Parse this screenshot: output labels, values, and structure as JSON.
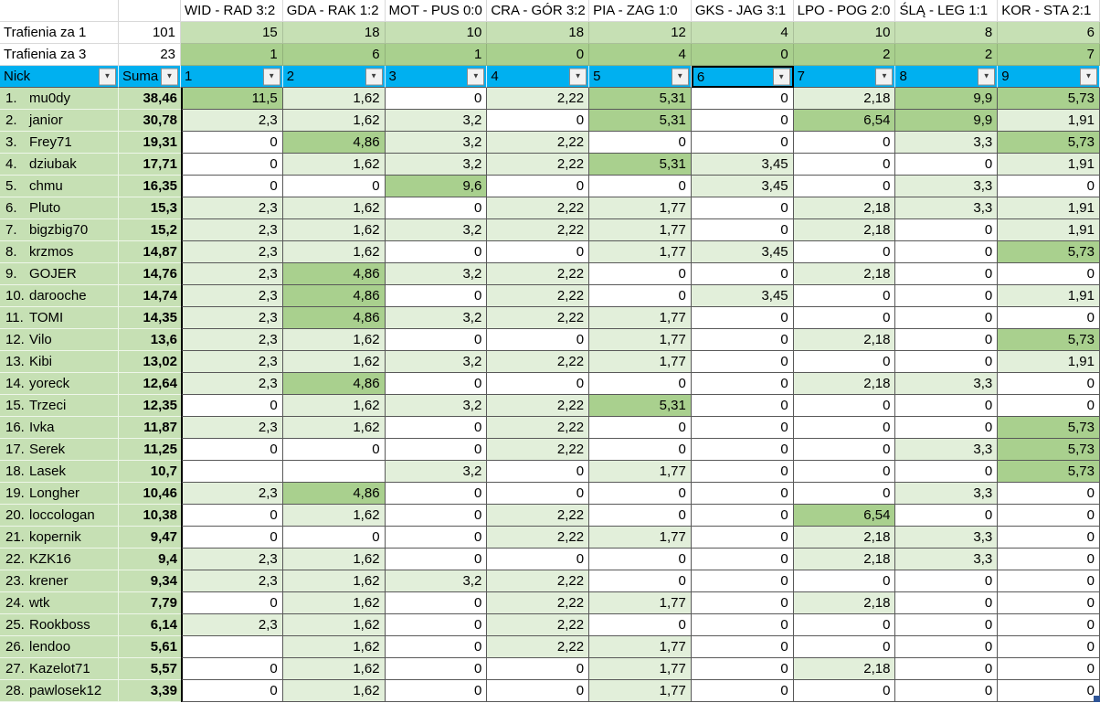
{
  "colors": {
    "filter_blue": "#00b0f0",
    "label_green": "#c6e0b4",
    "za1_green": "#c6e0b4",
    "za3_green": "#a9d08e",
    "hit1_green": "#e2efda",
    "hit3_green": "#a9d08e",
    "handle_blue": "#2f5597"
  },
  "matches": [
    "WID - RAD 3:2",
    "GDA - RAK 1:2",
    "MOT - PUS 0:0",
    "CRA - GÓR 3:2",
    "PIA - ZAG 1:0",
    "GKS - JAG 3:1",
    "LPO - POG 2:0",
    "ŚLĄ - LEG 1:1",
    "KOR - STA 2:1"
  ],
  "za1": {
    "label": "Trafienia za 1",
    "total": "101",
    "values": [
      "15",
      "18",
      "10",
      "18",
      "12",
      "4",
      "10",
      "8",
      "6"
    ]
  },
  "za3": {
    "label": "Trafienia za 3",
    "total": "23",
    "values": [
      "1",
      "6",
      "1",
      "0",
      "4",
      "0",
      "2",
      "2",
      "7"
    ]
  },
  "filter": {
    "nick_label": "Nick",
    "suma_label": "Suma",
    "column_labels": [
      "1",
      "2",
      "3",
      "4",
      "5",
      "6",
      "7",
      "8",
      "9"
    ],
    "selected_column": "6",
    "dropdown_icon": "▼"
  },
  "players": [
    {
      "rank": "1.",
      "nick": "mu0dy",
      "suma": "38,46",
      "scores": [
        "11,5",
        "1,62",
        "0",
        "2,22",
        "5,31",
        "0",
        "2,18",
        "9,9",
        "5,73"
      ]
    },
    {
      "rank": "2.",
      "nick": "janior",
      "suma": "30,78",
      "scores": [
        "2,3",
        "1,62",
        "3,2",
        "0",
        "5,31",
        "0",
        "6,54",
        "9,9",
        "1,91"
      ]
    },
    {
      "rank": "3.",
      "nick": "Frey71",
      "suma": "19,31",
      "scores": [
        "0",
        "4,86",
        "3,2",
        "2,22",
        "0",
        "0",
        "0",
        "3,3",
        "5,73"
      ]
    },
    {
      "rank": "4.",
      "nick": "dziubak",
      "suma": "17,71",
      "scores": [
        "0",
        "1,62",
        "3,2",
        "2,22",
        "5,31",
        "3,45",
        "0",
        "0",
        "1,91"
      ]
    },
    {
      "rank": "5.",
      "nick": "chmu",
      "suma": "16,35",
      "scores": [
        "0",
        "0",
        "9,6",
        "0",
        "0",
        "3,45",
        "0",
        "3,3",
        "0"
      ]
    },
    {
      "rank": "6.",
      "nick": "Pluto",
      "suma": "15,3",
      "scores": [
        "2,3",
        "1,62",
        "0",
        "2,22",
        "1,77",
        "0",
        "2,18",
        "3,3",
        "1,91"
      ]
    },
    {
      "rank": "7.",
      "nick": "bigzbig70",
      "suma": "15,2",
      "scores": [
        "2,3",
        "1,62",
        "3,2",
        "2,22",
        "1,77",
        "0",
        "2,18",
        "0",
        "1,91"
      ]
    },
    {
      "rank": "8.",
      "nick": "krzmos",
      "suma": "14,87",
      "scores": [
        "2,3",
        "1,62",
        "0",
        "0",
        "1,77",
        "3,45",
        "0",
        "0",
        "5,73"
      ]
    },
    {
      "rank": "9.",
      "nick": "GOJER",
      "suma": "14,76",
      "scores": [
        "2,3",
        "4,86",
        "3,2",
        "2,22",
        "0",
        "0",
        "2,18",
        "0",
        "0"
      ]
    },
    {
      "rank": "10.",
      "nick": "darooche",
      "suma": "14,74",
      "scores": [
        "2,3",
        "4,86",
        "0",
        "2,22",
        "0",
        "3,45",
        "0",
        "0",
        "1,91"
      ]
    },
    {
      "rank": "11.",
      "nick": "TOMI",
      "suma": "14,35",
      "scores": [
        "2,3",
        "4,86",
        "3,2",
        "2,22",
        "1,77",
        "0",
        "0",
        "0",
        "0"
      ]
    },
    {
      "rank": "12.",
      "nick": "Vilo",
      "suma": "13,6",
      "scores": [
        "2,3",
        "1,62",
        "0",
        "0",
        "1,77",
        "0",
        "2,18",
        "0",
        "5,73"
      ]
    },
    {
      "rank": "13.",
      "nick": "Kibi",
      "suma": "13,02",
      "scores": [
        "2,3",
        "1,62",
        "3,2",
        "2,22",
        "1,77",
        "0",
        "0",
        "0",
        "1,91"
      ]
    },
    {
      "rank": "14.",
      "nick": "yoreck",
      "suma": "12,64",
      "scores": [
        "2,3",
        "4,86",
        "0",
        "0",
        "0",
        "0",
        "2,18",
        "3,3",
        "0"
      ]
    },
    {
      "rank": "15.",
      "nick": "Trzeci",
      "suma": "12,35",
      "scores": [
        "0",
        "1,62",
        "3,2",
        "2,22",
        "5,31",
        "0",
        "0",
        "0",
        "0"
      ]
    },
    {
      "rank": "16.",
      "nick": "Ivka",
      "suma": "11,87",
      "scores": [
        "2,3",
        "1,62",
        "0",
        "2,22",
        "0",
        "0",
        "0",
        "0",
        "5,73"
      ]
    },
    {
      "rank": "17.",
      "nick": "Serek",
      "suma": "11,25",
      "scores": [
        "0",
        "0",
        "0",
        "2,22",
        "0",
        "0",
        "0",
        "3,3",
        "5,73"
      ]
    },
    {
      "rank": "18.",
      "nick": "Lasek",
      "suma": "10,7",
      "scores": [
        "",
        "",
        "3,2",
        "0",
        "1,77",
        "0",
        "0",
        "0",
        "5,73"
      ]
    },
    {
      "rank": "19.",
      "nick": "Longher",
      "suma": "10,46",
      "scores": [
        "2,3",
        "4,86",
        "0",
        "0",
        "0",
        "0",
        "0",
        "3,3",
        "0"
      ]
    },
    {
      "rank": "20.",
      "nick": "loccologan",
      "suma": "10,38",
      "scores": [
        "0",
        "1,62",
        "0",
        "2,22",
        "0",
        "0",
        "6,54",
        "0",
        "0"
      ]
    },
    {
      "rank": "21.",
      "nick": "kopernik",
      "suma": "9,47",
      "scores": [
        "0",
        "0",
        "0",
        "2,22",
        "1,77",
        "0",
        "2,18",
        "3,3",
        "0"
      ]
    },
    {
      "rank": "22.",
      "nick": "KZK16",
      "suma": "9,4",
      "scores": [
        "2,3",
        "1,62",
        "0",
        "0",
        "0",
        "0",
        "2,18",
        "3,3",
        "0"
      ]
    },
    {
      "rank": "23.",
      "nick": "krener",
      "suma": "9,34",
      "scores": [
        "2,3",
        "1,62",
        "3,2",
        "2,22",
        "0",
        "0",
        "0",
        "0",
        "0"
      ]
    },
    {
      "rank": "24.",
      "nick": "wtk",
      "suma": "7,79",
      "scores": [
        "0",
        "1,62",
        "0",
        "2,22",
        "1,77",
        "0",
        "2,18",
        "0",
        "0"
      ]
    },
    {
      "rank": "25.",
      "nick": "Rookboss",
      "suma": "6,14",
      "scores": [
        "2,3",
        "1,62",
        "0",
        "2,22",
        "0",
        "0",
        "0",
        "0",
        "0"
      ]
    },
    {
      "rank": "26.",
      "nick": "lendoo",
      "suma": "5,61",
      "scores": [
        "",
        "1,62",
        "0",
        "2,22",
        "1,77",
        "0",
        "0",
        "0",
        "0"
      ]
    },
    {
      "rank": "27.",
      "nick": "Kazelot71",
      "suma": "5,57",
      "scores": [
        "0",
        "1,62",
        "0",
        "0",
        "1,77",
        "0",
        "2,18",
        "0",
        "0"
      ]
    },
    {
      "rank": "28.",
      "nick": "pawlosek12",
      "suma": "3,39",
      "scores": [
        "0",
        "1,62",
        "0",
        "0",
        "1,77",
        "0",
        "0",
        "0",
        "0"
      ]
    }
  ]
}
